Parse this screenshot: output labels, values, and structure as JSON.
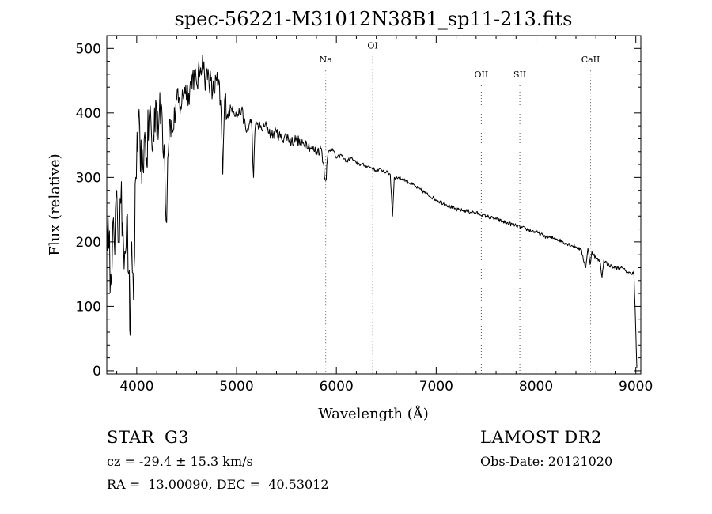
{
  "chart_data": {
    "type": "line",
    "title": "spec-56221-M31012N38B1_sp11-213.fits",
    "xlabel": "Wavelength (Å)",
    "ylabel": "Flux (relative)",
    "xlim": [
      3700,
      9050
    ],
    "ylim": [
      -5,
      520
    ],
    "xticks": [
      4000,
      5000,
      6000,
      7000,
      8000,
      9000
    ],
    "yticks": [
      0,
      100,
      200,
      300,
      400,
      500
    ],
    "grid": false,
    "series": [
      {
        "name": "flux",
        "color": "#000000",
        "x": [
          3700,
          3720,
          3740,
          3760,
          3780,
          3800,
          3820,
          3840,
          3860,
          3880,
          3900,
          3920,
          3935,
          3950,
          3968,
          3990,
          4010,
          4030,
          4050,
          4075,
          4100,
          4130,
          4160,
          4190,
          4220,
          4250,
          4280,
          4300,
          4310,
          4330,
          4360,
          4400,
          4440,
          4480,
          4520,
          4560,
          4600,
          4640,
          4660,
          4680,
          4720,
          4760,
          4800,
          4840,
          4862,
          4880,
          4920,
          4960,
          5000,
          5050,
          5100,
          5150,
          5170,
          5184,
          5200,
          5250,
          5300,
          5350,
          5400,
          5450,
          5500,
          5550,
          5600,
          5650,
          5700,
          5750,
          5800,
          5850,
          5893,
          5920,
          5960,
          6000,
          6050,
          6100,
          6150,
          6200,
          6250,
          6300,
          6350,
          6400,
          6450,
          6500,
          6540,
          6563,
          6580,
          6620,
          6700,
          6800,
          6900,
          7000,
          7100,
          7200,
          7300,
          7400,
          7500,
          7600,
          7700,
          7800,
          7900,
          8000,
          8100,
          8200,
          8300,
          8400,
          8450,
          8498,
          8520,
          8542,
          8560,
          8600,
          8640,
          8662,
          8680,
          8720,
          8780,
          8850,
          8900,
          8950,
          8980,
          9000,
          9010
        ],
        "y": [
          240,
          190,
          150,
          230,
          180,
          280,
          200,
          260,
          230,
          185,
          240,
          150,
          55,
          200,
          110,
          300,
          340,
          380,
          290,
          360,
          330,
          405,
          340,
          420,
          380,
          410,
          330,
          230,
          330,
          390,
          370,
          420,
          410,
          440,
          430,
          460,
          445,
          470,
          490,
          455,
          460,
          430,
          450,
          420,
          305,
          420,
          400,
          410,
          395,
          405,
          370,
          390,
          300,
          370,
          385,
          375,
          380,
          365,
          370,
          360,
          365,
          355,
          360,
          350,
          355,
          345,
          340,
          345,
          295,
          340,
          345,
          330,
          335,
          325,
          330,
          322,
          320,
          318,
          315,
          310,
          312,
          308,
          305,
          240,
          300,
          300,
          295,
          285,
          275,
          265,
          258,
          250,
          248,
          245,
          240,
          235,
          230,
          225,
          220,
          215,
          208,
          205,
          198,
          192,
          188,
          160,
          190,
          165,
          185,
          175,
          170,
          145,
          172,
          165,
          160,
          160,
          155,
          150,
          155,
          60,
          5
        ]
      }
    ],
    "annotations": [
      {
        "label": "Na",
        "x": 5893,
        "label_y": 478
      },
      {
        "label": "OI",
        "x": 6364,
        "label_y": 500
      },
      {
        "label": "OII",
        "x": 7452,
        "label_y": 455
      },
      {
        "label": "SII",
        "x": 7838,
        "label_y": 455
      },
      {
        "label": "CaII",
        "x": 8547,
        "label_y": 478
      }
    ]
  },
  "info": {
    "object_type": "STAR",
    "subclass": "G3",
    "survey": "LAMOST DR2",
    "cz": "cz = -29.4 ± 15.3 km/s",
    "obs_date": "Obs-Date: 20121020",
    "coords": "RA =  13.00090, DEC =  40.53012"
  },
  "colors": {
    "line": "#000000",
    "annotation_line": "#555555",
    "background": "#ffffff"
  }
}
